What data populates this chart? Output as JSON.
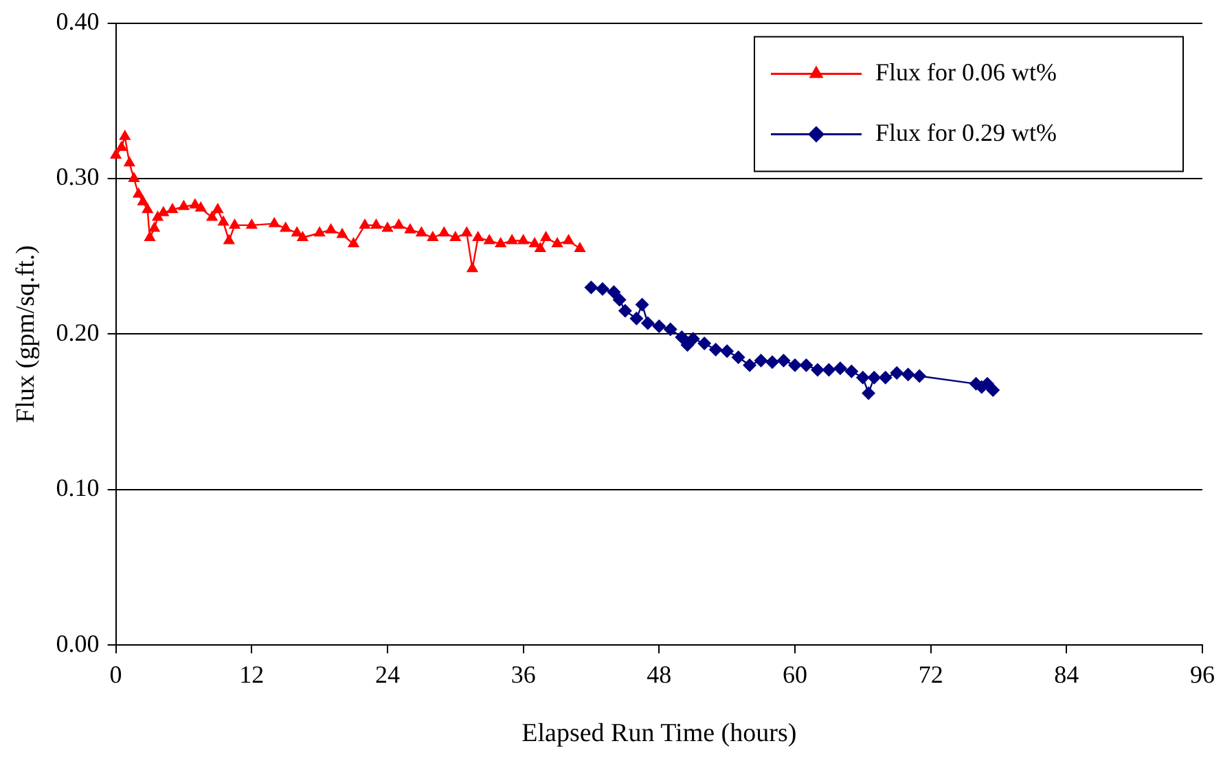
{
  "chart_data": {
    "type": "line",
    "xlabel": "Elapsed Run Time (hours)",
    "ylabel": "Flux (gpm/sq.ft.)",
    "xlim": [
      0,
      96
    ],
    "xticks": [
      0,
      12,
      24,
      36,
      48,
      60,
      72,
      84,
      96
    ],
    "ylim": [
      0,
      0.4
    ],
    "yticks": [
      {
        "value": 0,
        "label": "0.00"
      },
      {
        "value": 0.1,
        "label": "0.10"
      },
      {
        "value": 0.2,
        "label": "0.20"
      },
      {
        "value": 0.3,
        "label": "0.30"
      },
      {
        "value": 0.4,
        "label": "0.40"
      }
    ],
    "grid": "y",
    "legend": "top right",
    "line_style": "solid",
    "series": [
      {
        "name": "Flux for 0.06 wt%",
        "color": "#ff0000",
        "marker": "triangle",
        "x": [
          0,
          0.5,
          0.8,
          1.2,
          1.6,
          2,
          2.4,
          2.8,
          3,
          3.4,
          3.7,
          4.2,
          5,
          6,
          7,
          7.5,
          8.5,
          9,
          9.5,
          10,
          10.5,
          12,
          14,
          15,
          16,
          16.5,
          18,
          19,
          20,
          21,
          22,
          23,
          24,
          25,
          26,
          27,
          28,
          29,
          30,
          31,
          31.5,
          32,
          33,
          34,
          35,
          36,
          37,
          37.5,
          38,
          39,
          40,
          41
        ],
        "values": [
          0.315,
          0.32,
          0.327,
          0.31,
          0.3,
          0.29,
          0.285,
          0.28,
          0.262,
          0.268,
          0.275,
          0.278,
          0.28,
          0.282,
          0.283,
          0.281,
          0.275,
          0.28,
          0.272,
          0.26,
          0.27,
          0.27,
          0.271,
          0.268,
          0.265,
          0.262,
          0.265,
          0.267,
          0.264,
          0.258,
          0.27,
          0.27,
          0.268,
          0.27,
          0.267,
          0.265,
          0.262,
          0.265,
          0.262,
          0.265,
          0.242,
          0.262,
          0.26,
          0.258,
          0.26,
          0.26,
          0.258,
          0.255,
          0.262,
          0.258,
          0.26,
          0.255
        ]
      },
      {
        "name": "Flux for 0.29 wt%",
        "color": "#000080",
        "marker": "diamond",
        "x": [
          42,
          43,
          44,
          44.5,
          45,
          46,
          46.5,
          47,
          48,
          49,
          50,
          50.5,
          51,
          52,
          53,
          54,
          55,
          56,
          57,
          58,
          59,
          60,
          61,
          62,
          63,
          64,
          65,
          66,
          66.5,
          67,
          68,
          69,
          70,
          71,
          76,
          76.5,
          77,
          77.5
        ],
        "values": [
          0.23,
          0.229,
          0.227,
          0.222,
          0.215,
          0.21,
          0.219,
          0.207,
          0.205,
          0.203,
          0.198,
          0.193,
          0.197,
          0.194,
          0.19,
          0.189,
          0.185,
          0.18,
          0.183,
          0.182,
          0.183,
          0.18,
          0.18,
          0.177,
          0.177,
          0.178,
          0.176,
          0.172,
          0.162,
          0.172,
          0.172,
          0.175,
          0.174,
          0.173,
          0.168,
          0.166,
          0.168,
          0.164
        ]
      }
    ]
  }
}
